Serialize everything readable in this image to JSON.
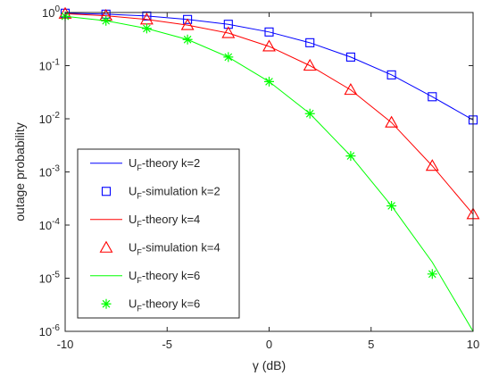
{
  "chart_data": {
    "type": "line",
    "xlabel": "γ (dB)",
    "ylabel": "outage probability",
    "xlim": [
      -10,
      10
    ],
    "ylim": [
      1e-06,
      1
    ],
    "yscale": "log",
    "grid": false,
    "legend_position": "bottom-left",
    "x_ticks": [
      {
        "value": -10,
        "label": "-10"
      },
      {
        "value": -5,
        "label": "-5"
      },
      {
        "value": 0,
        "label": "0"
      },
      {
        "value": 5,
        "label": "5"
      },
      {
        "value": 10,
        "label": "10"
      }
    ],
    "y_ticks": [
      {
        "value": 1,
        "base": "10",
        "exp": "0"
      },
      {
        "value": 0.1,
        "base": "10",
        "exp": "-1"
      },
      {
        "value": 0.01,
        "base": "10",
        "exp": "-2"
      },
      {
        "value": 0.001,
        "base": "10",
        "exp": "-3"
      },
      {
        "value": 0.0001,
        "base": "10",
        "exp": "-4"
      },
      {
        "value": 1e-05,
        "base": "10",
        "exp": "-5"
      },
      {
        "value": 1e-06,
        "base": "10",
        "exp": "-6"
      }
    ],
    "series": [
      {
        "legend": {
          "main": "U",
          "sub": "F",
          "rest": "-theory k=2"
        },
        "style": "line",
        "color": "#0000ff",
        "x": [
          -10,
          -8,
          -6,
          -4,
          -2,
          0,
          2,
          4,
          6,
          8,
          10
        ],
        "y": [
          0.97,
          0.93,
          0.86,
          0.74,
          0.6,
          0.43,
          0.27,
          0.145,
          0.067,
          0.026,
          0.0095
        ]
      },
      {
        "legend": {
          "main": "U",
          "sub": "F",
          "rest": "-simulation k=2"
        },
        "style": "square",
        "color": "#0000ff",
        "x": [
          -10,
          -8,
          -6,
          -4,
          -2,
          0,
          2,
          4,
          6,
          8,
          10
        ],
        "y": [
          0.97,
          0.93,
          0.86,
          0.74,
          0.6,
          0.43,
          0.27,
          0.145,
          0.067,
          0.026,
          0.0095
        ]
      },
      {
        "legend": {
          "main": "U",
          "sub": "F",
          "rest": "-theory k=4"
        },
        "style": "line",
        "color": "#ff0000",
        "x": [
          -10,
          -8,
          -6,
          -4,
          -2,
          0,
          2,
          4,
          6,
          8,
          10
        ],
        "y": [
          0.95,
          0.87,
          0.74,
          0.58,
          0.41,
          0.23,
          0.1,
          0.035,
          0.0085,
          0.0013,
          0.00016
        ]
      },
      {
        "legend": {
          "main": "U",
          "sub": "F",
          "rest": "-simulation k=4"
        },
        "style": "triangle",
        "color": "#ff0000",
        "x": [
          -10,
          -8,
          -6,
          -4,
          -2,
          0,
          2,
          4,
          6,
          8,
          10
        ],
        "y": [
          0.95,
          0.87,
          0.74,
          0.58,
          0.41,
          0.23,
          0.1,
          0.035,
          0.0085,
          0.0013,
          0.00016
        ]
      },
      {
        "legend": {
          "main": "U",
          "sub": "F",
          "rest": "-theory k=6"
        },
        "style": "line",
        "color": "#00ff00",
        "x": [
          -10,
          -8,
          -6,
          -4,
          -2,
          0,
          2,
          4,
          6,
          8,
          10
        ],
        "y": [
          0.85,
          0.7,
          0.5,
          0.31,
          0.145,
          0.05,
          0.0125,
          0.002,
          0.00023,
          2e-05,
          1e-06
        ]
      },
      {
        "legend": {
          "main": "U",
          "sub": "F",
          "rest": "-theory k=6"
        },
        "style": "asterisk",
        "color": "#00ff00",
        "x": [
          -10,
          -8,
          -6,
          -4,
          -2,
          0,
          2,
          4,
          6,
          8
        ],
        "y": [
          0.85,
          0.7,
          0.5,
          0.31,
          0.145,
          0.05,
          0.0125,
          0.002,
          0.00023,
          1.2e-05
        ]
      }
    ]
  }
}
